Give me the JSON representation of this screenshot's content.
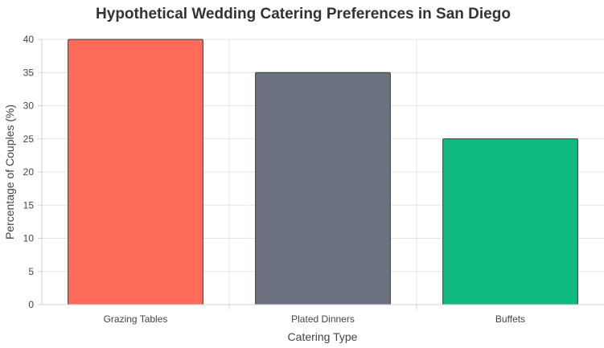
{
  "chart_data": {
    "type": "bar",
    "title": "Hypothetical Wedding Catering Preferences in San Diego",
    "xlabel": "Catering Type",
    "ylabel": "Percentage of Couples (%)",
    "categories": [
      "Grazing Tables",
      "Plated Dinners",
      "Buffets"
    ],
    "values": [
      40,
      35,
      25
    ],
    "colors": [
      "#ff6b5b",
      "#6b7280",
      "#10b981"
    ],
    "border_color": "#3a3a3a",
    "ylim": [
      0,
      40
    ],
    "y_ticks": [
      "0",
      "5",
      "10",
      "15",
      "20",
      "25",
      "30",
      "35",
      "40"
    ],
    "grid": true,
    "legend": "none"
  }
}
